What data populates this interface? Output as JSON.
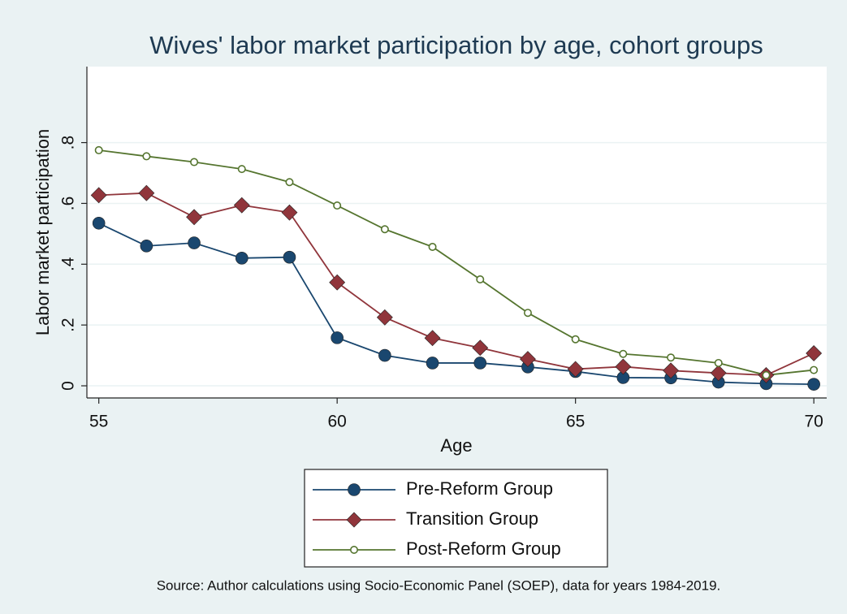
{
  "chart_data": {
    "type": "line",
    "title": "Wives' labor market participation by age, cohort groups",
    "x_label": "Age",
    "y_label": "Labor market participation",
    "source": "Source: Author calculations using Socio-Economic Panel (SOEP), data for years 1984-2019.",
    "x": [
      55,
      56,
      57,
      58,
      59,
      60,
      61,
      62,
      63,
      64,
      65,
      66,
      67,
      68,
      69,
      70
    ],
    "series": [
      {
        "name": "Pre-Reform Group",
        "color": "#1a476f",
        "marker": "circle",
        "values": [
          0.535,
          0.46,
          0.47,
          0.42,
          0.423,
          0.158,
          0.1,
          0.075,
          0.075,
          0.062,
          0.047,
          0.027,
          0.026,
          0.012,
          0.007,
          0.005
        ]
      },
      {
        "name": "Transition Group",
        "color": "#90353b",
        "marker": "diamond",
        "values": [
          0.627,
          0.634,
          0.555,
          0.594,
          0.57,
          0.34,
          0.225,
          0.157,
          0.125,
          0.088,
          0.055,
          0.063,
          0.05,
          0.042,
          0.035,
          0.107
        ]
      },
      {
        "name": "Post-Reform Group",
        "color": "#55752f",
        "marker": "hollow-circle",
        "values": [
          0.775,
          0.755,
          0.736,
          0.713,
          0.67,
          0.593,
          0.515,
          0.457,
          0.35,
          0.24,
          0.153,
          0.105,
          0.093,
          0.075,
          0.035,
          0.052
        ]
      }
    ],
    "xlim": [
      54.75,
      70.27
    ],
    "ylim": [
      -0.04,
      1.05
    ],
    "xticks": [
      55,
      60,
      65,
      70
    ],
    "yticks": [
      0,
      {
        "value": 0.2,
        "label": ".2"
      },
      {
        "value": 0.4,
        "label": ".4"
      },
      {
        "value": 0.6,
        "label": ".6"
      },
      {
        "value": 0.8,
        "label": ".8"
      }
    ],
    "grid": true,
    "legend": "bottom"
  }
}
